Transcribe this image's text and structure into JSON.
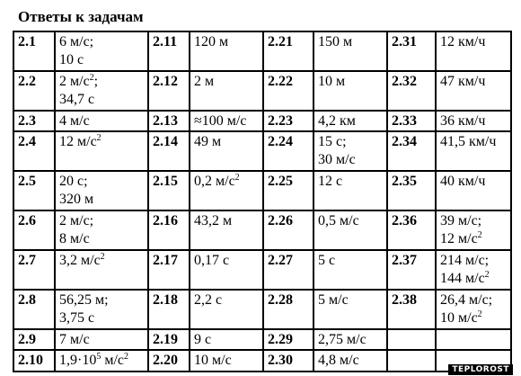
{
  "title": "Ответы к задачам",
  "watermark": "TEPLOROST",
  "rows": [
    [
      {
        "n": "2.1",
        "v": [
          "6 м/с;",
          "10 с"
        ]
      },
      {
        "n": "2.11",
        "v": [
          "120 м"
        ]
      },
      {
        "n": "2.21",
        "v": [
          "150 м"
        ]
      },
      {
        "n": "2.31",
        "v": [
          "12 км/ч"
        ]
      }
    ],
    [
      {
        "n": "2.2",
        "v": [
          "2 м/с^2;",
          "34,7 с"
        ]
      },
      {
        "n": "2.12",
        "v": [
          "2 м"
        ]
      },
      {
        "n": "2.22",
        "v": [
          "10 м"
        ]
      },
      {
        "n": "2.32",
        "v": [
          "47 км/ч"
        ]
      }
    ],
    [
      {
        "n": "2.3",
        "v": [
          "4 м/с"
        ]
      },
      {
        "n": "2.13",
        "v": [
          "≈100 м/с"
        ]
      },
      {
        "n": "2.23",
        "v": [
          "4,2 км"
        ]
      },
      {
        "n": "2.33",
        "v": [
          "36 км/ч"
        ]
      }
    ],
    [
      {
        "n": "2.4",
        "v": [
          "12 м/с^2"
        ]
      },
      {
        "n": "2.14",
        "v": [
          "49 м"
        ]
      },
      {
        "n": "2.24",
        "v": [
          "15 с;",
          "30 м/с"
        ]
      },
      {
        "n": "2.34",
        "v": [
          "41,5 км/ч"
        ]
      }
    ],
    [
      {
        "n": "2.5",
        "v": [
          "20 с;",
          "320 м"
        ]
      },
      {
        "n": "2.15",
        "v": [
          "0,2 м/с^2"
        ]
      },
      {
        "n": "2.25",
        "v": [
          "12 с"
        ]
      },
      {
        "n": "2.35",
        "v": [
          "40 км/ч"
        ]
      }
    ],
    [
      {
        "n": "2.6",
        "v": [
          "2 м/с;",
          "8 м/с"
        ]
      },
      {
        "n": "2.16",
        "v": [
          "43,2 м"
        ]
      },
      {
        "n": "2.26",
        "v": [
          "0,5 м/с"
        ]
      },
      {
        "n": "2.36",
        "v": [
          "39 м/с;",
          "12 м/с^2"
        ]
      }
    ],
    [
      {
        "n": "2.7",
        "v": [
          "3,2 м/с^2"
        ]
      },
      {
        "n": "2.17",
        "v": [
          "0,17 с"
        ]
      },
      {
        "n": "2.27",
        "v": [
          "5 с"
        ]
      },
      {
        "n": "2.37",
        "v": [
          "214 м/с;",
          "144 м/с^2"
        ]
      }
    ],
    [
      {
        "n": "2.8",
        "v": [
          "56,25 м;",
          "3,75 с"
        ]
      },
      {
        "n": "2.18",
        "v": [
          "2,2 с"
        ]
      },
      {
        "n": "2.28",
        "v": [
          "5 м/с"
        ]
      },
      {
        "n": "2.38",
        "v": [
          "26,4 м/с;",
          "10 м/с^2"
        ]
      }
    ],
    [
      {
        "n": "2.9",
        "v": [
          "7 м/с"
        ]
      },
      {
        "n": "2.19",
        "v": [
          "9 с"
        ]
      },
      {
        "n": "2.29",
        "v": [
          "2,75 м/с"
        ]
      },
      {
        "n": "",
        "v": []
      }
    ],
    [
      {
        "n": "2.10",
        "v": [
          "1,9·10^5 м/с^2"
        ]
      },
      {
        "n": "2.20",
        "v": [
          "10 м/с"
        ]
      },
      {
        "n": "2.30",
        "v": [
          "4,8 м/с"
        ]
      },
      {
        "n": "",
        "v": []
      }
    ]
  ]
}
